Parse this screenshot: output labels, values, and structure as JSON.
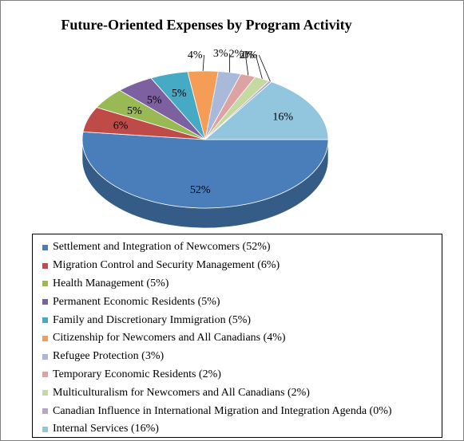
{
  "chart_data": {
    "type": "pie",
    "title": "Future-Oriented Expenses by Program Activity",
    "three_d": true,
    "legend_position": "bottom",
    "slices": [
      {
        "name": "Settlement and Integration of Newcomers (52%)",
        "value": 52,
        "label": "52%",
        "color": "#4a7ebb"
      },
      {
        "name": "Migration Control and Security Management  (6%)",
        "value": 6,
        "label": "6%",
        "color": "#be4b48"
      },
      {
        "name": "Health Management (5%)",
        "value": 5,
        "label": "5%",
        "color": "#98b954"
      },
      {
        "name": "Permanent Economic Residents  (5%)",
        "value": 5,
        "label": "5%",
        "color": "#7d60a0"
      },
      {
        "name": "Family and Discretionary Immigration  (5%)",
        "value": 5,
        "label": "5%",
        "color": "#46aac5"
      },
      {
        "name": "Citizenship for Newcomers and All Canadians  (4%)",
        "value": 4,
        "label": "4%",
        "color": "#f59d56"
      },
      {
        "name": "Refugee Protection (3%)",
        "value": 3,
        "label": "3%",
        "color": "#a8b9da"
      },
      {
        "name": "Temporary Economic Residents (2%)",
        "value": 2,
        "label": "2%",
        "color": "#dca3a2"
      },
      {
        "name": "Multiculturalism  for Newcomers and All Canadians (2%)",
        "value": 2,
        "label": "2%",
        "color": "#c5d9a0"
      },
      {
        "name": "Canadian Influence in International Migration and Integration Agenda (0%)",
        "value": 0.4,
        "label": "0%",
        "color": "#b4a7c7"
      },
      {
        "name": "Internal Services (16%)",
        "value": 16,
        "label": "16%",
        "color": "#92c5de"
      }
    ]
  }
}
